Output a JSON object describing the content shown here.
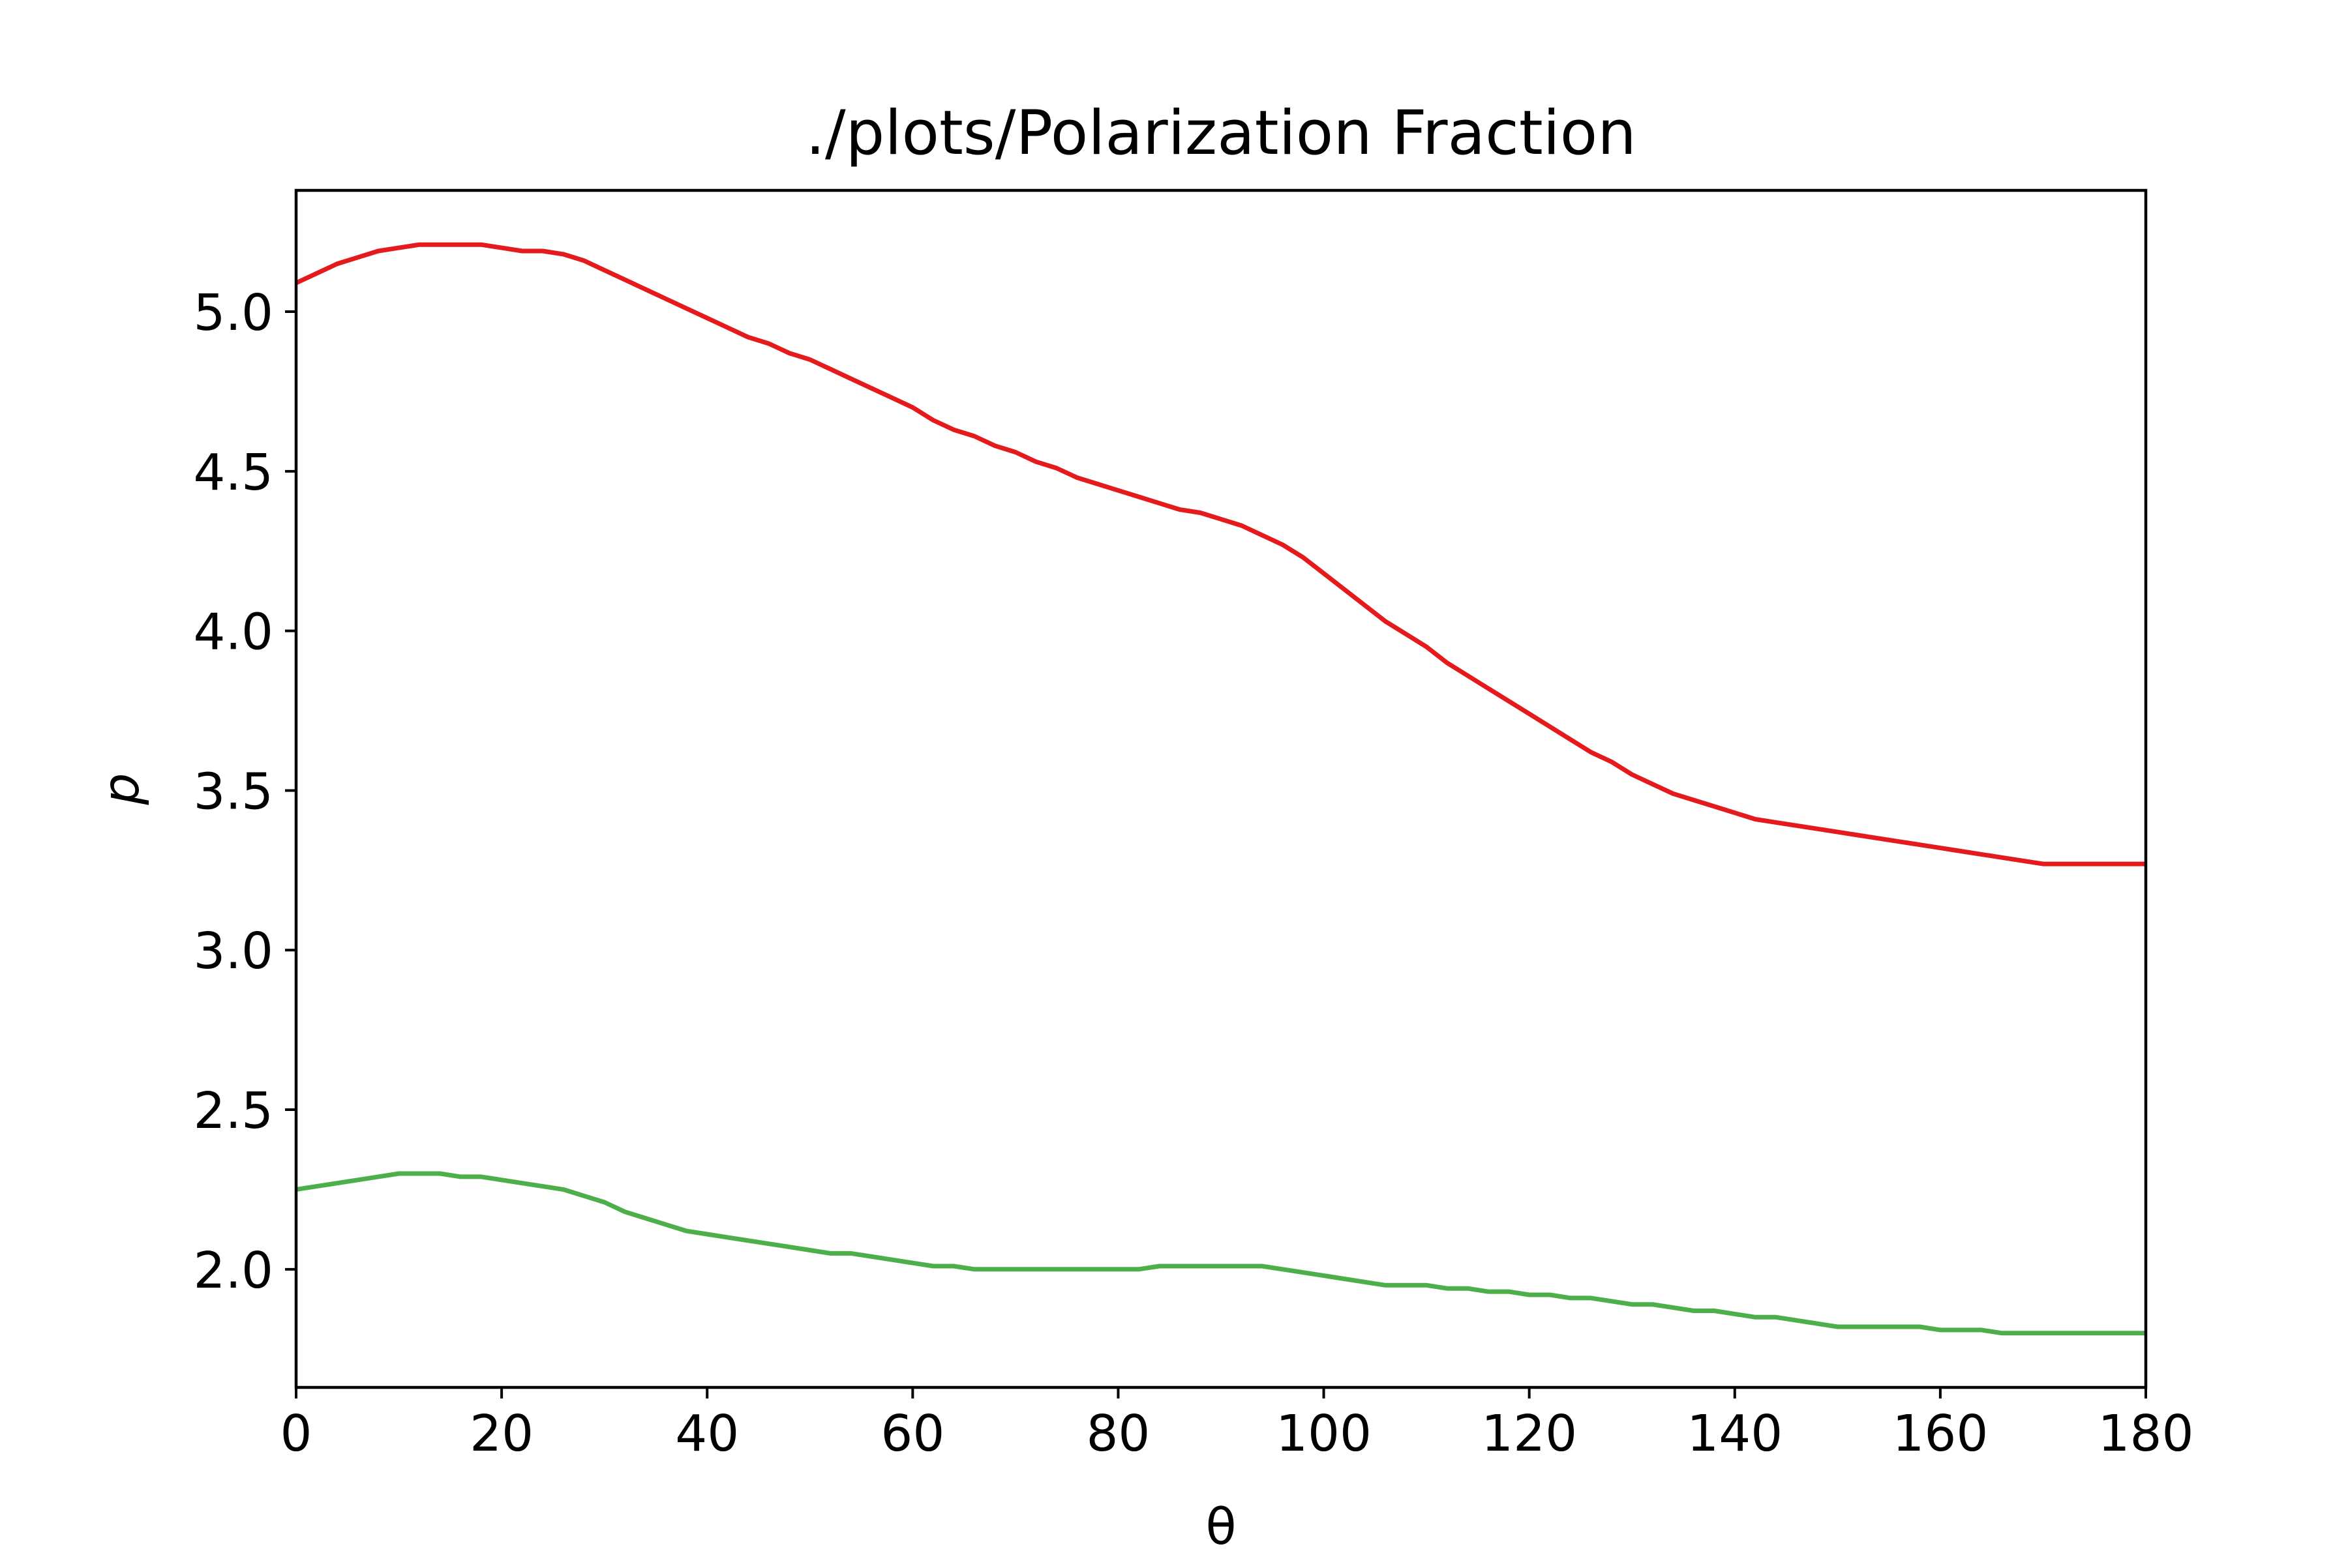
{
  "chart_data": {
    "type": "line",
    "title": "./plots/Polarization Fraction",
    "xlabel": "θ",
    "ylabel": "p",
    "xlim": [
      0,
      180
    ],
    "ylim": [
      1.63,
      5.38
    ],
    "xticks": [
      0,
      20,
      40,
      60,
      80,
      100,
      120,
      140,
      160,
      180
    ],
    "xtick_labels": [
      "0",
      "20",
      "40",
      "60",
      "80",
      "100",
      "120",
      "140",
      "160",
      "180"
    ],
    "yticks": [
      2.0,
      2.5,
      3.0,
      3.5,
      4.0,
      4.5,
      5.0
    ],
    "ytick_labels": [
      "2.0",
      "2.5",
      "3.0",
      "3.5",
      "4.0",
      "4.5",
      "5.0"
    ],
    "grid": false,
    "legend": "none",
    "series": [
      {
        "color": "#e41a1c",
        "x": [
          0,
          2,
          4,
          6,
          8,
          10,
          12,
          14,
          16,
          18,
          20,
          22,
          24,
          26,
          28,
          30,
          32,
          34,
          36,
          38,
          40,
          42,
          44,
          46,
          48,
          50,
          52,
          54,
          56,
          58,
          60,
          62,
          64,
          66,
          68,
          70,
          72,
          74,
          76,
          78,
          80,
          82,
          84,
          86,
          88,
          90,
          92,
          94,
          96,
          98,
          100,
          102,
          104,
          106,
          108,
          110,
          112,
          114,
          116,
          118,
          120,
          122,
          124,
          126,
          128,
          130,
          132,
          134,
          136,
          138,
          140,
          142,
          144,
          146,
          148,
          150,
          152,
          154,
          156,
          158,
          160,
          162,
          164,
          166,
          168,
          170,
          172,
          174,
          176,
          178,
          180
        ],
        "y": [
          5.09,
          5.12,
          5.15,
          5.17,
          5.19,
          5.2,
          5.21,
          5.21,
          5.21,
          5.21,
          5.2,
          5.19,
          5.19,
          5.18,
          5.16,
          5.13,
          5.1,
          5.07,
          5.04,
          5.01,
          4.98,
          4.95,
          4.92,
          4.9,
          4.87,
          4.85,
          4.82,
          4.79,
          4.76,
          4.73,
          4.7,
          4.66,
          4.63,
          4.61,
          4.58,
          4.56,
          4.53,
          4.51,
          4.48,
          4.46,
          4.44,
          4.42,
          4.4,
          4.38,
          4.37,
          4.35,
          4.33,
          4.3,
          4.27,
          4.23,
          4.18,
          4.13,
          4.08,
          4.03,
          3.99,
          3.95,
          3.9,
          3.86,
          3.82,
          3.78,
          3.74,
          3.7,
          3.66,
          3.62,
          3.59,
          3.55,
          3.52,
          3.49,
          3.47,
          3.45,
          3.43,
          3.41,
          3.4,
          3.39,
          3.38,
          3.37,
          3.36,
          3.35,
          3.34,
          3.33,
          3.32,
          3.31,
          3.3,
          3.29,
          3.28,
          3.27,
          3.27,
          3.27,
          3.27,
          3.27,
          3.27
        ]
      },
      {
        "color": "#4daf4a",
        "x": [
          0,
          2,
          4,
          6,
          8,
          10,
          12,
          14,
          16,
          18,
          20,
          22,
          24,
          26,
          28,
          30,
          32,
          34,
          36,
          38,
          40,
          42,
          44,
          46,
          48,
          50,
          52,
          54,
          56,
          58,
          60,
          62,
          64,
          66,
          68,
          70,
          72,
          74,
          76,
          78,
          80,
          82,
          84,
          86,
          88,
          90,
          92,
          94,
          96,
          98,
          100,
          102,
          104,
          106,
          108,
          110,
          112,
          114,
          116,
          118,
          120,
          122,
          124,
          126,
          128,
          130,
          132,
          134,
          136,
          138,
          140,
          142,
          144,
          146,
          148,
          150,
          152,
          154,
          156,
          158,
          160,
          162,
          164,
          166,
          168,
          170,
          172,
          174,
          176,
          178,
          180
        ],
        "y": [
          2.25,
          2.26,
          2.27,
          2.28,
          2.29,
          2.3,
          2.3,
          2.3,
          2.29,
          2.29,
          2.28,
          2.27,
          2.26,
          2.25,
          2.23,
          2.21,
          2.18,
          2.16,
          2.14,
          2.12,
          2.11,
          2.1,
          2.09,
          2.08,
          2.07,
          2.06,
          2.05,
          2.05,
          2.04,
          2.03,
          2.02,
          2.01,
          2.01,
          2.0,
          2.0,
          2.0,
          2.0,
          2.0,
          2.0,
          2.0,
          2.0,
          2.0,
          2.01,
          2.01,
          2.01,
          2.01,
          2.01,
          2.01,
          2.0,
          1.99,
          1.98,
          1.97,
          1.96,
          1.95,
          1.95,
          1.95,
          1.94,
          1.94,
          1.93,
          1.93,
          1.92,
          1.92,
          1.91,
          1.91,
          1.9,
          1.89,
          1.89,
          1.88,
          1.87,
          1.87,
          1.86,
          1.85,
          1.85,
          1.84,
          1.83,
          1.82,
          1.82,
          1.82,
          1.82,
          1.82,
          1.81,
          1.81,
          1.81,
          1.8,
          1.8,
          1.8,
          1.8,
          1.8,
          1.8,
          1.8,
          1.8
        ]
      }
    ]
  }
}
